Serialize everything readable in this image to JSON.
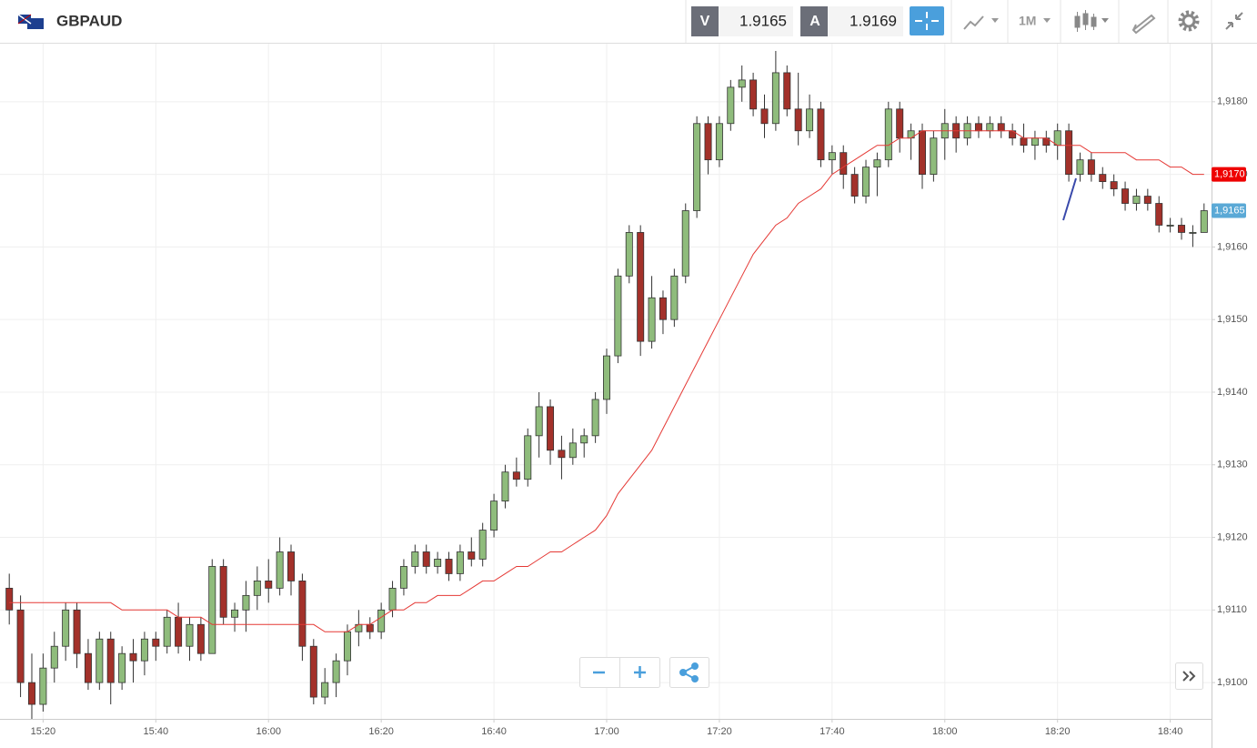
{
  "header": {
    "symbol": "GBPAUD",
    "bid_label": "V",
    "bid": 1.9165,
    "ask_label": "A",
    "ask": 1.9169,
    "timeframe": "1M"
  },
  "chart_data": {
    "type": "candlestick",
    "categories": [
      null,
      null,
      null,
      "15:20",
      null,
      null,
      null,
      null,
      null,
      null,
      null,
      null,
      null,
      "15:40",
      null,
      null,
      null,
      null,
      null,
      null,
      null,
      null,
      null,
      "16:00",
      null,
      null,
      null,
      null,
      null,
      null,
      null,
      null,
      null,
      "16:20",
      null,
      null,
      null,
      null,
      null,
      null,
      null,
      null,
      null,
      "16:40",
      null,
      null,
      null,
      null,
      null,
      null,
      null,
      null,
      null,
      "17:00",
      null,
      null,
      null,
      null,
      null,
      null,
      null,
      null,
      null,
      "17:20",
      null,
      null,
      null,
      null,
      null,
      null,
      null,
      null,
      null,
      "17:40",
      null,
      null,
      null,
      null,
      null,
      null,
      null,
      null,
      null,
      "18:00",
      null,
      null,
      null,
      null,
      null,
      null,
      null,
      null,
      null,
      "18:20",
      null,
      null,
      null,
      null,
      null,
      null,
      null,
      null,
      null,
      "18:40",
      null,
      null,
      null
    ],
    "open": [
      1.9113,
      1.911,
      1.91,
      1.9097,
      1.9102,
      1.9105,
      1.911,
      1.9104,
      1.91,
      1.9106,
      1.91,
      1.9104,
      1.9103,
      1.9106,
      1.9105,
      1.9109,
      1.9105,
      1.9108,
      1.9104,
      1.9116,
      1.9109,
      1.911,
      1.9112,
      1.9114,
      1.9113,
      1.9118,
      1.9114,
      1.9105,
      1.9098,
      1.91,
      1.9103,
      1.9107,
      1.9108,
      1.9107,
      1.911,
      1.9113,
      1.9116,
      1.9118,
      1.9116,
      1.9117,
      1.9115,
      1.9118,
      1.9117,
      1.9121,
      1.9125,
      1.9129,
      1.9128,
      1.9134,
      1.9138,
      1.9132,
      1.9131,
      1.9133,
      1.9134,
      1.9139,
      1.9145,
      1.9156,
      1.9162,
      1.9147,
      1.9153,
      1.915,
      1.9156,
      1.9165,
      1.9177,
      1.9172,
      1.9177,
      1.9182,
      1.9183,
      1.9179,
      1.9177,
      1.9184,
      1.9179,
      1.9176,
      1.9179,
      1.9172,
      1.9173,
      1.917,
      1.9167,
      1.9171,
      1.9172,
      1.9179,
      1.9175,
      1.9176,
      1.917,
      1.9175,
      1.9177,
      1.9175,
      1.9177,
      1.9176,
      1.9177,
      1.9176,
      1.9175,
      1.9174,
      1.9175,
      1.9174,
      1.9176,
      1.917,
      1.9172,
      1.917,
      1.9169,
      1.9168,
      1.9166,
      1.9167,
      1.9166,
      1.9163,
      1.9163,
      1.9162,
      1.9162
    ],
    "high": [
      1.9115,
      1.9112,
      1.9104,
      1.9104,
      1.9107,
      1.9111,
      1.9111,
      1.9106,
      1.9107,
      1.9107,
      1.9105,
      1.9106,
      1.9107,
      1.9107,
      1.911,
      1.9111,
      1.9109,
      1.9109,
      1.9117,
      1.9117,
      1.9111,
      1.9114,
      1.9116,
      1.9117,
      1.912,
      1.9119,
      1.9115,
      1.9106,
      1.9102,
      1.9104,
      1.9108,
      1.911,
      1.9109,
      1.9111,
      1.9114,
      1.9117,
      1.9119,
      1.9119,
      1.9118,
      1.9118,
      1.9119,
      1.912,
      1.9122,
      1.9126,
      1.913,
      1.9131,
      1.9135,
      1.914,
      1.9139,
      1.9134,
      1.9135,
      1.9135,
      1.914,
      1.9146,
      1.9157,
      1.9163,
      1.9163,
      1.9156,
      1.9154,
      1.9157,
      1.9166,
      1.9178,
      1.9178,
      1.9178,
      1.9183,
      1.9185,
      1.9184,
      1.9181,
      1.9187,
      1.9185,
      1.9184,
      1.9181,
      1.918,
      1.9174,
      1.9174,
      1.9171,
      1.9172,
      1.9173,
      1.918,
      1.918,
      1.9177,
      1.9177,
      1.9176,
      1.9179,
      1.9178,
      1.9178,
      1.9178,
      1.9178,
      1.9178,
      1.9177,
      1.9177,
      1.9176,
      1.9176,
      1.9177,
      1.9177,
      1.9173,
      1.9173,
      1.9171,
      1.917,
      1.9169,
      1.9168,
      1.9168,
      1.9167,
      1.9164,
      1.9164,
      1.9163,
      1.9166
    ],
    "low": [
      1.9108,
      1.9098,
      1.9095,
      1.9096,
      1.91,
      1.9103,
      1.9102,
      1.9099,
      1.9099,
      1.9097,
      1.9099,
      1.91,
      1.9101,
      1.9103,
      1.9104,
      1.9104,
      1.9103,
      1.9103,
      1.9104,
      1.9108,
      1.9107,
      1.9107,
      1.911,
      1.9111,
      1.9112,
      1.9112,
      1.9103,
      1.9097,
      1.9097,
      1.9098,
      1.9101,
      1.9105,
      1.9106,
      1.9106,
      1.9109,
      1.9112,
      1.9115,
      1.9115,
      1.9115,
      1.9114,
      1.9114,
      1.9116,
      1.9116,
      1.912,
      1.9124,
      1.9127,
      1.9127,
      1.9131,
      1.913,
      1.9128,
      1.913,
      1.9131,
      1.9133,
      1.9137,
      1.9144,
      1.9155,
      1.9145,
      1.9146,
      1.9148,
      1.9149,
      1.9155,
      1.9164,
      1.917,
      1.9171,
      1.9176,
      1.918,
      1.9178,
      1.9175,
      1.9176,
      1.9178,
      1.9174,
      1.9175,
      1.9171,
      1.917,
      1.9168,
      1.9166,
      1.9166,
      1.9167,
      1.9171,
      1.9173,
      1.9172,
      1.9168,
      1.9169,
      1.9172,
      1.9173,
      1.9174,
      1.9175,
      1.9175,
      1.9175,
      1.9174,
      1.9173,
      1.9172,
      1.9173,
      1.9172,
      1.9169,
      1.9169,
      1.9169,
      1.9168,
      1.9167,
      1.9165,
      1.9165,
      1.9165,
      1.9162,
      1.9162,
      1.9161,
      1.916,
      1.9162
    ],
    "close": [
      1.911,
      1.91,
      1.9097,
      1.9102,
      1.9105,
      1.911,
      1.9104,
      1.91,
      1.9106,
      1.91,
      1.9104,
      1.9103,
      1.9106,
      1.9105,
      1.9109,
      1.9105,
      1.9108,
      1.9104,
      1.9116,
      1.9109,
      1.911,
      1.9112,
      1.9114,
      1.9113,
      1.9118,
      1.9114,
      1.9105,
      1.9098,
      1.91,
      1.9103,
      1.9107,
      1.9108,
      1.9107,
      1.911,
      1.9113,
      1.9116,
      1.9118,
      1.9116,
      1.9117,
      1.9115,
      1.9118,
      1.9117,
      1.9121,
      1.9125,
      1.9129,
      1.9128,
      1.9134,
      1.9138,
      1.9132,
      1.9131,
      1.9133,
      1.9134,
      1.9139,
      1.9145,
      1.9156,
      1.9162,
      1.9147,
      1.9153,
      1.915,
      1.9156,
      1.9165,
      1.9177,
      1.9172,
      1.9177,
      1.9182,
      1.9183,
      1.9179,
      1.9177,
      1.9184,
      1.9179,
      1.9176,
      1.9179,
      1.9172,
      1.9173,
      1.917,
      1.9167,
      1.9171,
      1.9172,
      1.9179,
      1.9175,
      1.9176,
      1.917,
      1.9175,
      1.9177,
      1.9175,
      1.9177,
      1.9176,
      1.9177,
      1.9176,
      1.9175,
      1.9174,
      1.9175,
      1.9174,
      1.9176,
      1.917,
      1.9172,
      1.917,
      1.9169,
      1.9168,
      1.9166,
      1.9167,
      1.9166,
      1.9163,
      1.9163,
      1.9162,
      1.9162,
      1.9165
    ],
    "up_color": "#8fbc7c",
    "down_color": "#a3312a",
    "ma": {
      "color": "#e53935",
      "values": [
        1.9111,
        1.9111,
        1.9111,
        1.9111,
        1.9111,
        1.9111,
        1.9111,
        1.9111,
        1.9111,
        1.9111,
        1.911,
        1.911,
        1.911,
        1.911,
        1.911,
        1.9109,
        1.9109,
        1.9109,
        1.9108,
        1.9108,
        1.9108,
        1.9108,
        1.9108,
        1.9108,
        1.9108,
        1.9108,
        1.9108,
        1.9108,
        1.9107,
        1.9107,
        1.9107,
        1.9108,
        1.9108,
        1.9109,
        1.911,
        1.911,
        1.9111,
        1.9111,
        1.9112,
        1.9112,
        1.9112,
        1.9113,
        1.9114,
        1.9114,
        1.9115,
        1.9116,
        1.9116,
        1.9117,
        1.9118,
        1.9118,
        1.9119,
        1.912,
        1.9121,
        1.9123,
        1.9126,
        1.9128,
        1.913,
        1.9132,
        1.9135,
        1.9138,
        1.9141,
        1.9144,
        1.9147,
        1.915,
        1.9153,
        1.9156,
        1.9159,
        1.9161,
        1.9163,
        1.9164,
        1.9166,
        1.9167,
        1.9168,
        1.917,
        1.9171,
        1.9172,
        1.9173,
        1.9174,
        1.9174,
        1.9175,
        1.9175,
        1.9176,
        1.9176,
        1.9176,
        1.9176,
        1.9176,
        1.9176,
        1.9176,
        1.9176,
        1.9176,
        1.9175,
        1.9175,
        1.9175,
        1.9174,
        1.9174,
        1.9174,
        1.9173,
        1.9173,
        1.9173,
        1.9173,
        1.9172,
        1.9172,
        1.9172,
        1.9171,
        1.9171,
        1.917,
        1.917
      ]
    },
    "markers": [
      {
        "value": 1.917,
        "label": "1,9170",
        "color": "#ee0000"
      },
      {
        "value": 1.9165,
        "label": "1,9165",
        "color": "#5aa9d6"
      }
    ],
    "ylim": [
      1.9095,
      1.9188
    ],
    "yticks": [
      {
        "value": 1.91,
        "label": "1,9100"
      },
      {
        "value": 1.911,
        "label": "1,9110"
      },
      {
        "value": 1.912,
        "label": "1,9120"
      },
      {
        "value": 1.913,
        "label": "1,9130"
      },
      {
        "value": 1.914,
        "label": "1,9140"
      },
      {
        "value": 1.915,
        "label": "1,9150"
      },
      {
        "value": 1.916,
        "label": "1,9160"
      },
      {
        "value": 1.917,
        "label": "1,9170"
      },
      {
        "value": 1.918,
        "label": "1,9180"
      }
    ],
    "grid": true
  }
}
